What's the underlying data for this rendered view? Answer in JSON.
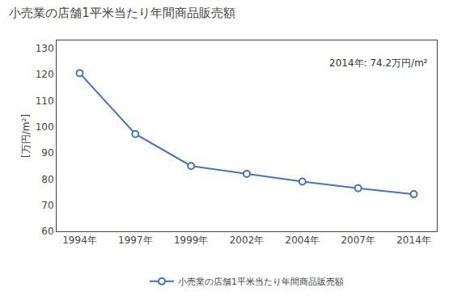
{
  "chart_data": {
    "type": "line",
    "title": "小売業の店舗1平米当たり年間商品販売額",
    "y_label": "[万円/m²]",
    "annotation": "2014年: 74.2万円/m²",
    "categories": [
      "1994年",
      "1997年",
      "1999年",
      "2002年",
      "2004年",
      "2007年",
      "2014年"
    ],
    "series": [
      {
        "name": "小売業の店舗1平米当たり年間商品販売額",
        "color": "#4472C4",
        "marker": "circle-open",
        "values": [
          120.5,
          97.2,
          85.0,
          82.0,
          79.0,
          76.5,
          74.2
        ]
      }
    ],
    "ylim": [
      60,
      133
    ],
    "yticks": [
      60,
      70,
      80,
      90,
      100,
      110,
      120,
      130
    ],
    "grid": false,
    "legend": "bottom"
  }
}
